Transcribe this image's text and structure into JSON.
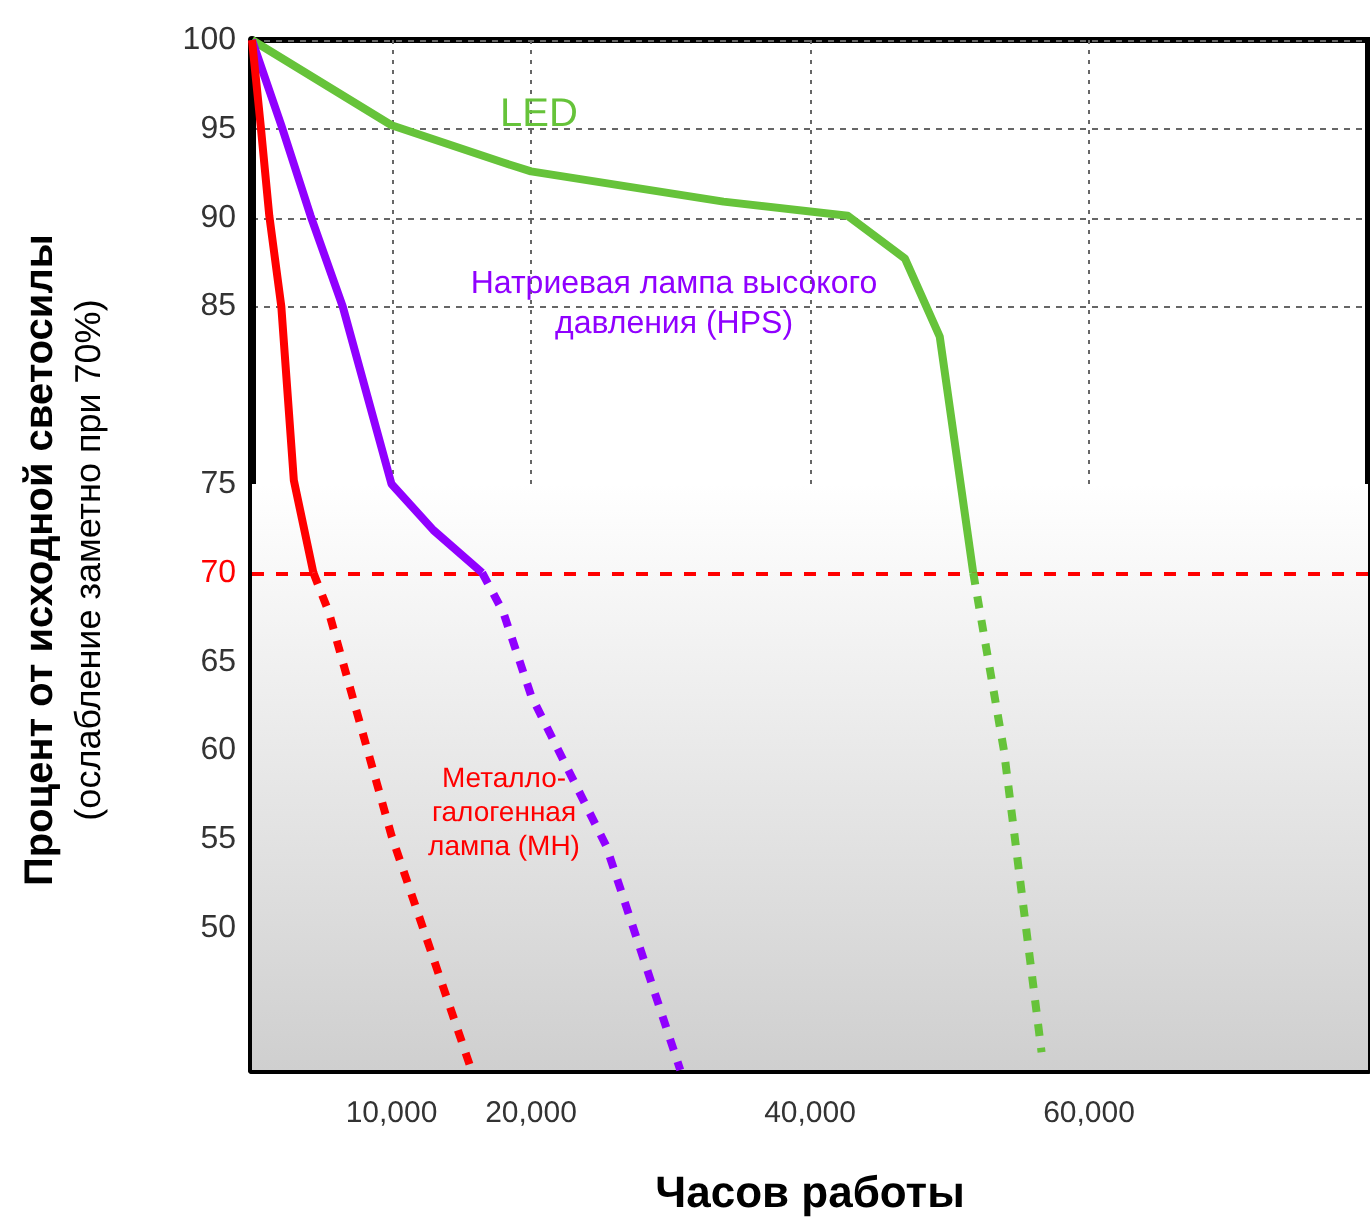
{
  "chart_data": {
    "type": "line",
    "xlabel": "Часов работы",
    "ylabel": "Процент от исходной светосилы\n(ослабление заметно при 70%)",
    "xlim": [
      0,
      80000
    ],
    "ylim": [
      42,
      100
    ],
    "xticks": [
      {
        "value": 10000,
        "label": "10,000"
      },
      {
        "value": 20000,
        "label": "20,000"
      },
      {
        "value": 40000,
        "label": "40,000"
      },
      {
        "value": 60000,
        "label": "60,000"
      }
    ],
    "yticks": [
      50,
      55,
      60,
      65,
      70,
      75,
      85,
      90,
      95,
      100
    ],
    "grid": true,
    "marker": "none",
    "line_style": "solid",
    "ref_lines": [
      {
        "axis": "y",
        "value": 70,
        "color": "#ff0000",
        "line_style": "dashed"
      }
    ],
    "bands": [
      {
        "axis": "y",
        "from": 42,
        "to": 75,
        "color": "#cfcfcf"
      }
    ],
    "series": [
      {
        "name": "LED",
        "color": "#66c33a",
        "x": [
          0,
          10000,
          18000,
          20000,
          33800,
          42700,
          46800,
          49300,
          51700
        ],
        "values": [
          100,
          95.2,
          93.1,
          92.6,
          90.9,
          90.1,
          87.7,
          83.3,
          70
        ]
      },
      {
        "color": "#66c33a",
        "line_style": "dashed",
        "x": [
          51700,
          53900,
          56600
        ],
        "values": [
          70,
          60,
          43
        ]
      },
      {
        "name": "Натриевая лампа высокого давления (HPS)",
        "color": "#9000ff",
        "x": [
          0,
          2100,
          4200,
          6500,
          10000,
          13000,
          16500
        ],
        "values": [
          100,
          95.2,
          90.1,
          85,
          75,
          72.4,
          70
        ]
      },
      {
        "color": "#9000ff",
        "line_style": "dashed",
        "x": [
          16500,
          18000,
          20000,
          25400,
          30700
        ],
        "values": [
          70,
          67.8,
          63.1,
          54.6,
          42
        ]
      },
      {
        "name": "Металло-галогенная лампа (MH)",
        "color": "#ff0000",
        "x": [
          0,
          620,
          1240,
          2100,
          3000,
          4400
        ],
        "values": [
          100,
          95.2,
          90.1,
          85,
          75.2,
          70
        ]
      },
      {
        "color": "#ff0000",
        "line_style": "dashed",
        "x": [
          4400,
          5500,
          10000,
          15600
        ],
        "values": [
          70,
          67.8,
          55.2,
          42.3
        ]
      }
    ]
  }
}
